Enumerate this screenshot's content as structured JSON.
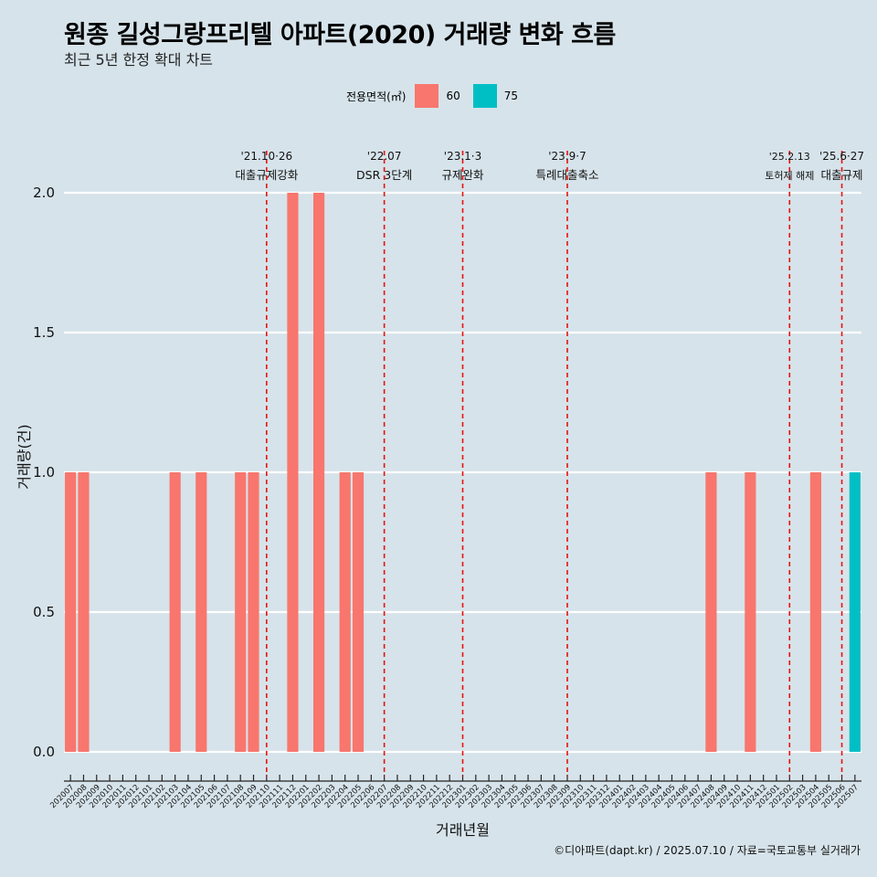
{
  "title": "원종 길성그랑프리텔 아파트(2020) 거래량 변화 흐름",
  "subtitle": "최근 5년 한정 확대 차트",
  "footer": "©디아파트(dapt.kr) / 2025.07.10 / 자료=국토교통부 실거래가",
  "legend": {
    "title": "전용면적(㎡)",
    "items": [
      {
        "label": "60",
        "color": "#f8766d"
      },
      {
        "label": "75",
        "color": "#00bfc4"
      }
    ]
  },
  "chart_data": {
    "type": "bar",
    "xlabel": "거래년월",
    "ylabel": "거래량(건)",
    "ylim": [
      0,
      2
    ],
    "yticks": [
      0.0,
      0.5,
      1.0,
      1.5,
      2.0
    ],
    "ytick_labels": [
      "0.0",
      "0.5",
      "1.0",
      "1.5",
      "2.0"
    ],
    "grid": true,
    "legend_position": "top",
    "categories": [
      "202007",
      "202008",
      "202009",
      "202010",
      "202011",
      "202012",
      "202101",
      "202102",
      "202103",
      "202104",
      "202105",
      "202106",
      "202107",
      "202108",
      "202109",
      "202110",
      "202111",
      "202112",
      "202201",
      "202202",
      "202203",
      "202204",
      "202205",
      "202206",
      "202207",
      "202208",
      "202209",
      "202210",
      "202211",
      "202212",
      "202301",
      "202302",
      "202303",
      "202304",
      "202305",
      "202306",
      "202307",
      "202308",
      "202309",
      "202310",
      "202311",
      "202312",
      "202401",
      "202402",
      "202403",
      "202404",
      "202405",
      "202406",
      "202407",
      "202408",
      "202409",
      "202410",
      "202411",
      "202412",
      "202501",
      "202502",
      "202503",
      "202504",
      "202505",
      "202506",
      "202507"
    ],
    "series": [
      {
        "name": "60",
        "color": "#f8766d",
        "values": [
          1,
          1,
          0,
          0,
          0,
          0,
          0,
          0,
          1,
          0,
          1,
          0,
          0,
          1,
          1,
          0,
          0,
          2,
          0,
          2,
          0,
          1,
          1,
          0,
          0,
          0,
          0,
          0,
          0,
          0,
          0,
          0,
          0,
          0,
          0,
          0,
          0,
          0,
          0,
          0,
          0,
          0,
          0,
          0,
          0,
          0,
          0,
          0,
          0,
          1,
          0,
          0,
          1,
          0,
          0,
          0,
          0,
          1,
          0,
          0,
          0
        ]
      },
      {
        "name": "75",
        "color": "#00bfc4",
        "values": [
          0,
          0,
          0,
          0,
          0,
          0,
          0,
          0,
          0,
          0,
          0,
          0,
          0,
          0,
          0,
          0,
          0,
          0,
          0,
          0,
          0,
          0,
          0,
          0,
          0,
          0,
          0,
          0,
          0,
          0,
          0,
          0,
          0,
          0,
          0,
          0,
          0,
          0,
          0,
          0,
          0,
          0,
          0,
          0,
          0,
          0,
          0,
          0,
          0,
          0,
          0,
          0,
          0,
          0,
          0,
          0,
          0,
          0,
          0,
          0,
          1
        ]
      }
    ],
    "annotations": [
      {
        "x": "202110",
        "date": "'21.10·26",
        "label": "대출규제강화"
      },
      {
        "x": "202207",
        "date": "'22.07",
        "label": "DSR 3단계"
      },
      {
        "x": "202301",
        "date": "'23.1·3",
        "label": "규제완화"
      },
      {
        "x": "202309",
        "date": "'23.9·7",
        "label": "특례대출축소"
      },
      {
        "x": "202502",
        "date": "'25.2.13",
        "label": "토허제 해제"
      },
      {
        "x": "202506",
        "date": "'25.6·27",
        "label": "대출규제"
      }
    ]
  }
}
